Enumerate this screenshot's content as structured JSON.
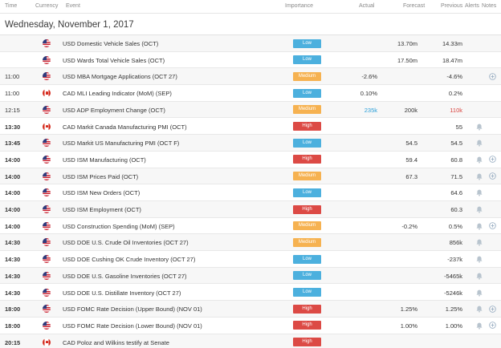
{
  "header": {
    "time": "Time",
    "currency": "Currency",
    "event": "Event",
    "importance": "Importance",
    "actual": "Actual",
    "forecast": "Forecast",
    "previous": "Previous",
    "alerts": "Alerts",
    "notes": "Notes"
  },
  "date_label": "Wednesday, November 1, 2017",
  "colors": {
    "low": "#4cb0de",
    "medium": "#f6b251",
    "high": "#dc4a45",
    "actual_better": "#2a9fd8",
    "actual_worse": "#d9433f"
  },
  "events": [
    {
      "time": "",
      "bold": false,
      "currency": "USD",
      "flag": "us-flag-icon",
      "event": "USD Domestic Vehicle Sales (OCT)",
      "importance": "Low",
      "actual": "",
      "actual_color": "",
      "forecast": "13.70m",
      "previous": "14.33m",
      "prev_color": "",
      "alert": false,
      "add": false
    },
    {
      "time": "",
      "bold": false,
      "currency": "USD",
      "flag": "us-flag-icon",
      "event": "USD Wards Total Vehicle Sales (OCT)",
      "importance": "Low",
      "actual": "",
      "actual_color": "",
      "forecast": "17.50m",
      "previous": "18.47m",
      "prev_color": "",
      "alert": false,
      "add": false
    },
    {
      "time": "11:00",
      "bold": false,
      "currency": "USD",
      "flag": "us-flag-icon",
      "event": "USD MBA Mortgage Applications (OCT 27)",
      "importance": "Medium",
      "actual": "-2.6%",
      "actual_color": "",
      "forecast": "",
      "previous": "-4.6%",
      "prev_color": "",
      "alert": false,
      "add": true
    },
    {
      "time": "11:00",
      "bold": false,
      "currency": "CAD",
      "flag": "ca-flag-icon",
      "event": "CAD MLI Leading Indicator (MoM) (SEP)",
      "importance": "Low",
      "actual": "0.10%",
      "actual_color": "",
      "forecast": "",
      "previous": "0.2%",
      "prev_color": "",
      "alert": false,
      "add": false
    },
    {
      "time": "12:15",
      "bold": false,
      "currency": "USD",
      "flag": "us-flag-icon",
      "event": "USD ADP Employment Change (OCT)",
      "importance": "Medium",
      "actual": "235k",
      "actual_color": "#2a9fd8",
      "forecast": "200k",
      "previous": "110k",
      "prev_color": "#d9433f",
      "alert": false,
      "add": false
    },
    {
      "time": "13:30",
      "bold": true,
      "currency": "CAD",
      "flag": "ca-flag-icon",
      "event": "CAD Markit Canada Manufacturing PMI (OCT)",
      "importance": "High",
      "actual": "",
      "actual_color": "",
      "forecast": "",
      "previous": "55",
      "prev_color": "",
      "alert": true,
      "add": false
    },
    {
      "time": "13:45",
      "bold": true,
      "currency": "USD",
      "flag": "us-flag-icon",
      "event": "USD Markit US Manufacturing PMI (OCT F)",
      "importance": "Low",
      "actual": "",
      "actual_color": "",
      "forecast": "54.5",
      "previous": "54.5",
      "prev_color": "",
      "alert": true,
      "add": false
    },
    {
      "time": "14:00",
      "bold": true,
      "currency": "USD",
      "flag": "us-flag-icon",
      "event": "USD ISM Manufacturing (OCT)",
      "importance": "High",
      "actual": "",
      "actual_color": "",
      "forecast": "59.4",
      "previous": "60.8",
      "prev_color": "",
      "alert": true,
      "add": true
    },
    {
      "time": "14:00",
      "bold": true,
      "currency": "USD",
      "flag": "us-flag-icon",
      "event": "USD ISM Prices Paid (OCT)",
      "importance": "Medium",
      "actual": "",
      "actual_color": "",
      "forecast": "67.3",
      "previous": "71.5",
      "prev_color": "",
      "alert": true,
      "add": true
    },
    {
      "time": "14:00",
      "bold": true,
      "currency": "USD",
      "flag": "us-flag-icon",
      "event": "USD ISM New Orders (OCT)",
      "importance": "Low",
      "actual": "",
      "actual_color": "",
      "forecast": "",
      "previous": "64.6",
      "prev_color": "",
      "alert": true,
      "add": false
    },
    {
      "time": "14:00",
      "bold": true,
      "currency": "USD",
      "flag": "us-flag-icon",
      "event": "USD ISM Employment (OCT)",
      "importance": "High",
      "actual": "",
      "actual_color": "",
      "forecast": "",
      "previous": "60.3",
      "prev_color": "",
      "alert": true,
      "add": false
    },
    {
      "time": "14:00",
      "bold": true,
      "currency": "USD",
      "flag": "us-flag-icon",
      "event": "USD Construction Spending (MoM) (SEP)",
      "importance": "Medium",
      "actual": "",
      "actual_color": "",
      "forecast": "-0.2%",
      "previous": "0.5%",
      "prev_color": "",
      "alert": true,
      "add": true
    },
    {
      "time": "14:30",
      "bold": true,
      "currency": "USD",
      "flag": "us-flag-icon",
      "event": "USD DOE U.S. Crude Oil Inventories (OCT 27)",
      "importance": "Medium",
      "actual": "",
      "actual_color": "",
      "forecast": "",
      "previous": "856k",
      "prev_color": "",
      "alert": true,
      "add": false
    },
    {
      "time": "14:30",
      "bold": true,
      "currency": "USD",
      "flag": "us-flag-icon",
      "event": "USD DOE Cushing OK Crude Inventory (OCT 27)",
      "importance": "Low",
      "actual": "",
      "actual_color": "",
      "forecast": "",
      "previous": "-237k",
      "prev_color": "",
      "alert": true,
      "add": false
    },
    {
      "time": "14:30",
      "bold": true,
      "currency": "USD",
      "flag": "us-flag-icon",
      "event": "USD DOE U.S. Gasoline Inventories (OCT 27)",
      "importance": "Low",
      "actual": "",
      "actual_color": "",
      "forecast": "",
      "previous": "-5465k",
      "prev_color": "",
      "alert": true,
      "add": false
    },
    {
      "time": "14:30",
      "bold": true,
      "currency": "USD",
      "flag": "us-flag-icon",
      "event": "USD DOE U.S. Distillate Inventory (OCT 27)",
      "importance": "Low",
      "actual": "",
      "actual_color": "",
      "forecast": "",
      "previous": "-5246k",
      "prev_color": "",
      "alert": true,
      "add": false
    },
    {
      "time": "18:00",
      "bold": true,
      "currency": "USD",
      "flag": "us-flag-icon",
      "event": "USD FOMC Rate Decision (Upper Bound) (NOV 01)",
      "importance": "High",
      "actual": "",
      "actual_color": "",
      "forecast": "1.25%",
      "previous": "1.25%",
      "prev_color": "",
      "alert": true,
      "add": true
    },
    {
      "time": "18:00",
      "bold": true,
      "currency": "USD",
      "flag": "us-flag-icon",
      "event": "USD FOMC Rate Decision (Lower Bound) (NOV 01)",
      "importance": "High",
      "actual": "",
      "actual_color": "",
      "forecast": "1.00%",
      "previous": "1.00%",
      "prev_color": "",
      "alert": true,
      "add": true
    },
    {
      "time": "20:15",
      "bold": true,
      "currency": "CAD",
      "flag": "ca-flag-icon",
      "event": "CAD Poloz and Wilkins testify at Senate",
      "importance": "High",
      "actual": "",
      "actual_color": "",
      "forecast": "",
      "previous": "",
      "prev_color": "",
      "alert": false,
      "add": false
    }
  ]
}
